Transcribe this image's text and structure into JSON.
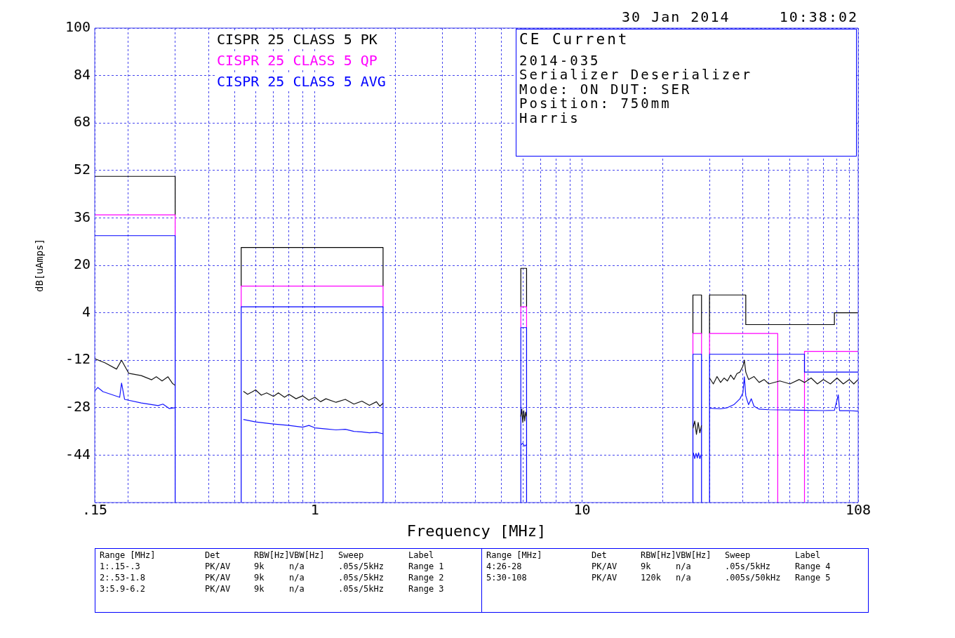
{
  "chart_data": {
    "type": "line",
    "title": "CE Current",
    "xlabel": "Frequency [MHz]",
    "ylabel": "dB[uAmps]",
    "log": "x",
    "grid": true,
    "legend": "top left",
    "marker": "none",
    "line_style": "solid",
    "xlim": [
      0.15,
      108
    ],
    "ylim": [
      -60,
      100
    ],
    "xticks": [
      {
        "value": 0.15,
        "label": ".15"
      },
      {
        "value": 0.2,
        "label": null
      },
      {
        "value": 0.3,
        "label": null
      },
      {
        "value": 0.4,
        "label": null
      },
      {
        "value": 0.5,
        "label": null
      },
      {
        "value": 0.6,
        "label": null
      },
      {
        "value": 0.7,
        "label": null
      },
      {
        "value": 0.8,
        "label": null
      },
      {
        "value": 0.9,
        "label": null
      },
      1,
      {
        "value": 2,
        "label": null
      },
      {
        "value": 3,
        "label": null
      },
      {
        "value": 4,
        "label": null
      },
      {
        "value": 5,
        "label": null
      },
      {
        "value": 6,
        "label": null
      },
      {
        "value": 7,
        "label": null
      },
      {
        "value": 8,
        "label": null
      },
      {
        "value": 9,
        "label": null
      },
      10,
      {
        "value": 20,
        "label": null
      },
      {
        "value": 30,
        "label": null
      },
      {
        "value": 40,
        "label": null
      },
      {
        "value": 50,
        "label": null
      },
      {
        "value": 60,
        "label": null
      },
      {
        "value": 70,
        "label": null
      },
      {
        "value": 80,
        "label": null
      },
      {
        "value": 90,
        "label": null
      },
      {
        "value": 100,
        "label": null
      },
      108
    ],
    "yticks": [
      {
        "value": -60,
        "label": null
      },
      -44,
      -28,
      -12,
      4,
      20,
      36,
      52,
      68,
      84,
      100
    ],
    "annotations": [
      "2014-035",
      "Serializer Deserializer",
      "Mode: ON DUT: SER",
      "Position: 750mm",
      "Harris",
      "30 Jan 2014",
      "10:38:02",
      "Range [MHz]",
      "Det",
      "RBW[Hz]",
      "VBW[Hz]",
      "Sweep",
      "Label",
      "1:.15-.3",
      "PK/AV",
      "9k",
      "n/a",
      ".05s/5kHz",
      "Range 1",
      "2:.53-1.8",
      "PK/AV",
      "9k",
      "n/a",
      ".05s/5kHz",
      "Range 2",
      "3:5.9-6.2",
      "PK/AV",
      "9k",
      "n/a",
      ".05s/5kHz",
      "Range 3",
      "Range [MHz]",
      "Det",
      "RBW[Hz]",
      "VBW[Hz]",
      "Sweep",
      "Label",
      "4:26-28",
      "PK/AV",
      "9k",
      "n/a",
      ".05s/5kHz",
      "Range 4",
      "5:30-108",
      "PK/AV",
      "120k",
      "n/a",
      ".005s/50kHz",
      "Range 5"
    ],
    "series": [
      {
        "name": "CISPR 25 CLASS 5 PK",
        "color": "#000000",
        "x": [
          0.15,
          0.3,
          0.3,
          null,
          0.53,
          0.53,
          1.8,
          1.8,
          null,
          5.9,
          5.9,
          6.2,
          6.2,
          null,
          26,
          26,
          28,
          28,
          null,
          30,
          30,
          41,
          41,
          88,
          88,
          108
        ],
        "values": [
          50,
          50,
          37,
          null,
          13,
          26,
          26,
          13,
          null,
          6,
          19,
          19,
          6,
          null,
          -3,
          10,
          10,
          -3,
          null,
          -3,
          10,
          10,
          0,
          0,
          4,
          4
        ]
      },
      {
        "name": "CISPR 25 CLASS 5 QP",
        "color": "#ff00ff",
        "x": [
          0.15,
          0.3,
          0.3,
          null,
          0.53,
          0.53,
          1.8,
          1.8,
          null,
          5.9,
          5.9,
          6.2,
          6.2,
          null,
          26,
          26,
          28,
          28,
          null,
          30,
          30,
          54,
          54,
          null,
          68,
          68,
          108
        ],
        "values": [
          37,
          37,
          30,
          null,
          6,
          13,
          13,
          6,
          null,
          -1,
          6,
          6,
          -1,
          null,
          -10,
          -3,
          -3,
          -10,
          null,
          -10,
          -3,
          -3,
          -60,
          null,
          -60,
          -9,
          -9
        ]
      },
      {
        "name": "CISPR 25 CLASS 5 AVG",
        "color": "#0000ff",
        "x": [
          0.15,
          0.3,
          0.3,
          null,
          0.53,
          0.53,
          1.8,
          1.8,
          null,
          5.9,
          5.9,
          6.2,
          6.2,
          null,
          26,
          26,
          28,
          28,
          null,
          30,
          30,
          68,
          68,
          108
        ],
        "values": [
          30,
          30,
          -60,
          null,
          -60,
          6,
          6,
          -60,
          null,
          -60,
          -1,
          -1,
          -60,
          null,
          -60,
          -10,
          -10,
          -60,
          null,
          -60,
          -10,
          -10,
          -16,
          -16
        ]
      },
      {
        "color": "#141414",
        "x": [
          0.15,
          0.164,
          0.181,
          0.189,
          0.201,
          0.224,
          0.245,
          0.255,
          0.268,
          0.282,
          0.293,
          0.3,
          null,
          0.54,
          0.56,
          0.58,
          0.6,
          0.63,
          0.66,
          0.7,
          0.73,
          0.77,
          0.8,
          0.85,
          0.9,
          0.95,
          1.0,
          1.05,
          1.1,
          1.2,
          1.3,
          1.4,
          1.5,
          1.6,
          1.7,
          1.75,
          1.8,
          null,
          5.9,
          5.95,
          6.0,
          6.05,
          6.1,
          6.15,
          6.2,
          null,
          26,
          26.4,
          26.8,
          27.2,
          27.6,
          28,
          null,
          30,
          31,
          32,
          33,
          34,
          35,
          36,
          37,
          38,
          39,
          40,
          40.5,
          41,
          42,
          44,
          46,
          48,
          50,
          55,
          60,
          65,
          68,
          72,
          76,
          80,
          85,
          90,
          95,
          100,
          104,
          108
        ],
        "values": [
          -11.5,
          -12.9,
          -15,
          -12,
          -16.4,
          -17.2,
          -18.6,
          -17.6,
          -19,
          -17.6,
          -19.8,
          -20.5,
          null,
          -22.5,
          -23.5,
          -22.8,
          -22,
          -23.8,
          -23,
          -24.2,
          -23,
          -24.5,
          -23.5,
          -25,
          -24,
          -25.5,
          -24.5,
          -26,
          -25,
          -26.2,
          -25.2,
          -26.8,
          -25.8,
          -27.2,
          -26,
          -27.5,
          -26.5,
          null,
          -31,
          -28.5,
          -33,
          -29,
          -32.5,
          -29.5,
          -31,
          null,
          -35,
          -32.5,
          -37,
          -33,
          -36.5,
          -34,
          null,
          -18,
          -20,
          -17.5,
          -19.5,
          -18,
          -19,
          -17,
          -18.5,
          -16.5,
          -16,
          -14,
          -12,
          -16,
          -18.5,
          -17.5,
          -19.5,
          -18.5,
          -20,
          -19,
          -20,
          -18.5,
          -19.5,
          -18,
          -20,
          -18.5,
          -20,
          -18,
          -20,
          -18.5,
          -20,
          -18.5
        ]
      },
      {
        "color": "#1414ff",
        "x": [
          0.15,
          0.154,
          0.161,
          0.186,
          0.189,
          0.194,
          0.224,
          0.259,
          0.27,
          0.285,
          0.3,
          null,
          0.54,
          0.6,
          0.7,
          0.8,
          0.9,
          0.95,
          1.0,
          1.1,
          1.2,
          1.3,
          1.4,
          1.5,
          1.6,
          1.7,
          1.8,
          null,
          5.92,
          6.0,
          6.1,
          6.18,
          null,
          26.1,
          26.4,
          26.7,
          27,
          27.3,
          27.6,
          27.9,
          null,
          30,
          33,
          35,
          37,
          38,
          39,
          40,
          40.5,
          41,
          42,
          43,
          44,
          46,
          50,
          60,
          70,
          80,
          88,
          91,
          92,
          100,
          108
        ],
        "values": [
          -22.4,
          -21.2,
          -22.6,
          -24.5,
          -19.7,
          -25.2,
          -26.4,
          -27.3,
          -26.8,
          -28.3,
          -28,
          null,
          -32,
          -32.8,
          -33.5,
          -34,
          -34.6,
          -34,
          -34.8,
          -35.2,
          -35.5,
          -35.3,
          -36,
          -36.2,
          -36.5,
          -36.3,
          -36.8,
          null,
          -40.5,
          -40,
          -41,
          -40.5,
          null,
          -43.2,
          -45.2,
          -43.4,
          -45,
          -43.2,
          -45.2,
          -43.8,
          null,
          -28.2,
          -28.4,
          -28,
          -27,
          -26,
          -25,
          -23,
          -17.6,
          -24,
          -27,
          -25,
          -27.5,
          -28.5,
          -28.7,
          -28.8,
          -28.9,
          -29,
          -28.9,
          -23.7,
          -29,
          -29,
          -29.2
        ]
      }
    ]
  }
}
